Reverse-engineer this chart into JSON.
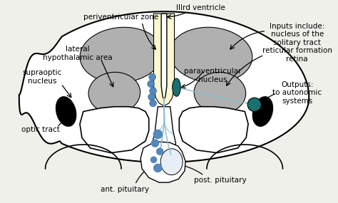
{
  "bg_color": "#f0f0eb",
  "gray_fill": "#b0b0b0",
  "yellow_fill": "#fdf8d0",
  "teal_fill": "#1a7070",
  "teal_dot": "#2a8888",
  "blue_fill": "#5588bb",
  "light_blue_line": "#88bbcc",
  "black_fill": "#000000",
  "labels": {
    "IIIrd_ventricle": "IIIrd ventricle",
    "periventricular_zone": "periventricular zone",
    "lateral_hypothalamic": "lateral\nhypothalamic area",
    "supraoptic": "supraoptic\nnucleus",
    "optic_tract": "optic tract",
    "ant_pituitary": "ant. pituitary",
    "post_pituitary": "post. pituitary",
    "paraventricular": "paraventricular\nnucleus",
    "inputs": "Inputs include:\nnucleus of the\nsolitary tract\nreticular formation\nretina",
    "outputs": "Outputs:\nto autonomic\nsystems"
  }
}
